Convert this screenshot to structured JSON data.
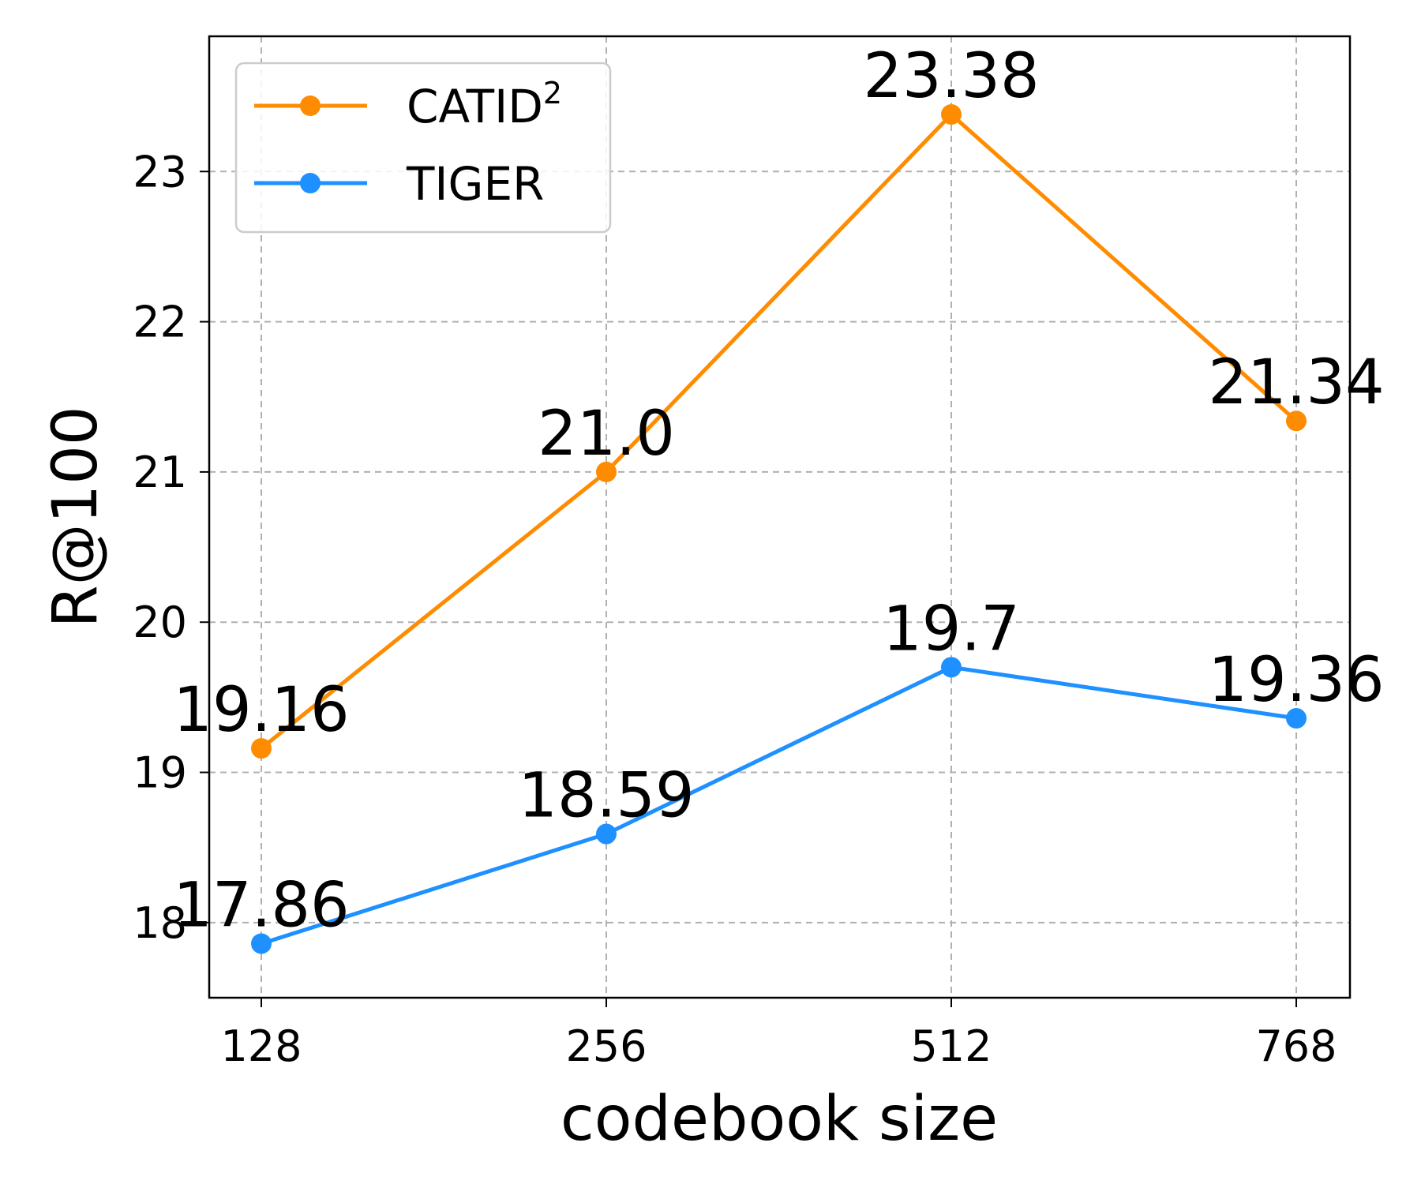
{
  "chart_data": {
    "type": "line",
    "xlabel": "codebook size",
    "ylabel": "R@100",
    "categories": [
      "128",
      "256",
      "512",
      "768"
    ],
    "ylim": [
      17.5,
      23.9
    ],
    "yticks": [
      18,
      19,
      20,
      21,
      22,
      23
    ],
    "grid": true,
    "legend_position": "top-left",
    "series": [
      {
        "name": "CATID",
        "name_superscript": "2",
        "color": "#ff8c00",
        "marker": "circle",
        "values": [
          19.16,
          21.0,
          23.38,
          21.34
        ],
        "labels": [
          "19.16",
          "21.0",
          "23.38",
          "21.34"
        ]
      },
      {
        "name": "TIGER",
        "name_superscript": "",
        "color": "#1e90ff",
        "marker": "circle",
        "values": [
          17.86,
          18.59,
          19.7,
          19.36
        ],
        "labels": [
          "17.86",
          "18.59",
          "19.7",
          "19.36"
        ]
      }
    ]
  }
}
